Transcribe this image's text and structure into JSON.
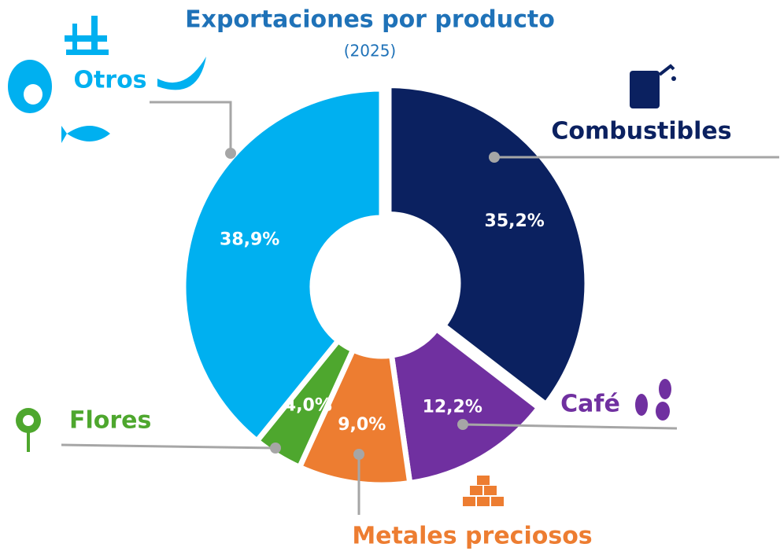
{
  "chart_data": {
    "type": "donut",
    "title": "Exportaciones por producto",
    "subtitle": "(2025)",
    "categories": [
      "Combustibles",
      "Café",
      "Metales preciosos",
      "Flores",
      "Otros"
    ],
    "values": [
      35.2,
      12.2,
      9.0,
      4.0,
      38.9
    ],
    "value_labels": [
      "35,2%",
      "12,2%",
      "9,0%",
      "4,0%",
      "38,9%"
    ],
    "colors": [
      "#0b2160",
      "#7030a0",
      "#ed7d31",
      "#4ea72e",
      "#00b0f0"
    ]
  }
}
